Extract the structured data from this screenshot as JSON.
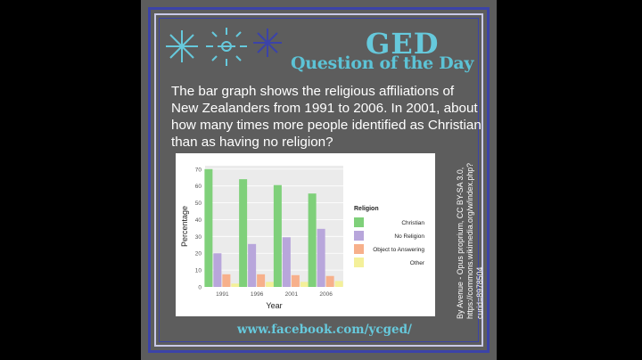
{
  "title": {
    "main": "GED",
    "sub": "Question of the Day"
  },
  "question": "The bar graph shows the religious affiliations of New Zealanders from 1991 to 2006. In 2001, about how many times more people identified as Christian than as having no religion?",
  "url": "www.facebook.com/ycged/",
  "attribution": [
    "By Avenue - Opus proprium, CC BY-SA 3.0,",
    "https://commons.wikimedia.org/w/index.php?",
    "curid=8978504"
  ],
  "colors": {
    "background": "#5d5d5d",
    "frame": "#3b43a8",
    "accent": "#66c9dc"
  },
  "icons": [
    "sparkle-icon",
    "firework-icon",
    "sparkle-icon"
  ],
  "chart_data": {
    "type": "bar",
    "title": "",
    "xlabel": "Year",
    "ylabel": "Percentage",
    "ylim": [
      0,
      72
    ],
    "yticks": [
      0,
      10,
      20,
      30,
      40,
      50,
      60,
      70
    ],
    "categories": [
      "1991",
      "1996",
      "2001",
      "2006"
    ],
    "legend_title": "Religion",
    "legend_position": "right",
    "grid": true,
    "series": [
      {
        "name": "Christian",
        "color": "#7fd07a",
        "values": [
          70,
          64,
          60.5,
          55.5
        ]
      },
      {
        "name": "No Religion",
        "color": "#b8a6db",
        "values": [
          20,
          25.5,
          29.5,
          34.5
        ]
      },
      {
        "name": "Object to Answering",
        "color": "#f7b08b",
        "values": [
          7.5,
          7.5,
          7,
          6.5
        ]
      },
      {
        "name": "Other",
        "color": "#f4f09a",
        "values": [
          2,
          3,
          3,
          3.5
        ]
      }
    ]
  }
}
